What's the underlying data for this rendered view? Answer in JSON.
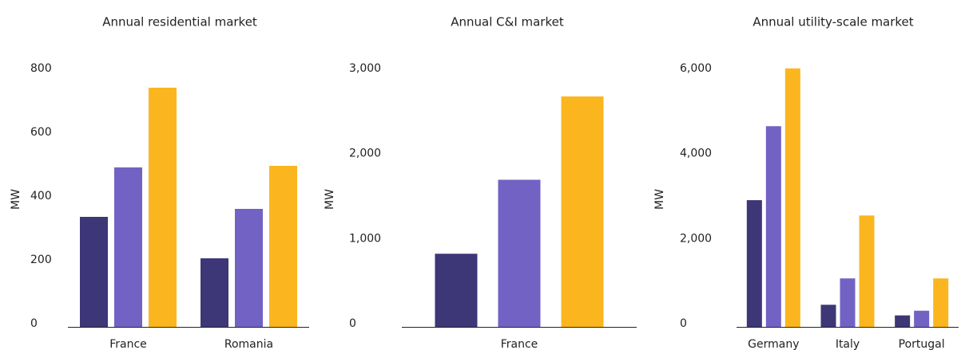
{
  "chart_data": [
    {
      "type": "bar",
      "title": "Annual residential market",
      "y_label": "MW",
      "categories": [
        "France",
        "Romania"
      ],
      "series": [
        {
          "color": "#3d3677",
          "values": [
            345,
            215
          ]
        },
        {
          "color": "#7262c4",
          "values": [
            500,
            370
          ]
        },
        {
          "color": "#fbb61f",
          "values": [
            750,
            505
          ]
        }
      ],
      "ylim": [
        0,
        800
      ],
      "yticks": [
        0,
        200,
        400,
        600,
        800
      ],
      "grid": false
    },
    {
      "type": "bar",
      "title": "Annual C&I market",
      "y_label": "MW",
      "categories": [
        "France"
      ],
      "series": [
        {
          "color": "#3d3677",
          "values": [
            860
          ]
        },
        {
          "color": "#7262c4",
          "values": [
            1730
          ]
        },
        {
          "color": "#fbb61f",
          "values": [
            2710
          ]
        }
      ],
      "ylim": [
        0,
        3000
      ],
      "yticks": [
        0,
        {
          "value": 1000,
          "label": "1,000"
        },
        {
          "value": 2000,
          "label": "2,000"
        },
        {
          "value": 3000,
          "label": "3,000"
        }
      ],
      "grid": false
    },
    {
      "type": "bar",
      "title": "Annual utility-scale market",
      "y_label": "MW",
      "categories": [
        "Germany",
        "Italy",
        "Portugal"
      ],
      "series": [
        {
          "color": "#3d3677",
          "values": [
            2980,
            520,
            270
          ]
        },
        {
          "color": "#7262c4",
          "values": [
            4720,
            1140,
            380
          ]
        },
        {
          "color": "#fbb61f",
          "values": [
            6080,
            2620,
            1140
          ]
        }
      ],
      "ylim": [
        0,
        6000
      ],
      "yticks": [
        0,
        {
          "value": 2000,
          "label": "2,000"
        },
        {
          "value": 4000,
          "label": "4,000"
        },
        {
          "value": 6000,
          "label": "6,000"
        }
      ],
      "grid": false
    }
  ]
}
